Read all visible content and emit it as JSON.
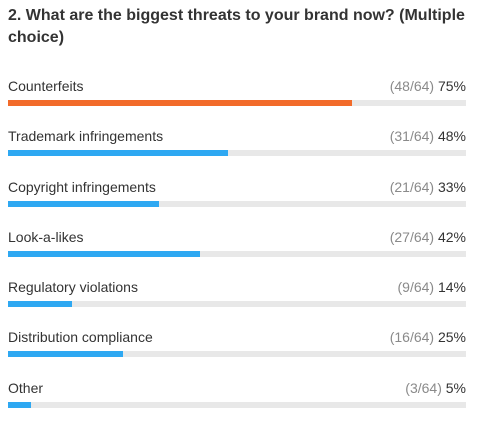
{
  "question": "2. What are the biggest threats to your brand now? (Multiple choice)",
  "colors": {
    "top": "#F26B2A",
    "default": "#2EA8F2",
    "track": "#E8E8E8"
  },
  "chart_data": {
    "type": "bar",
    "orientation": "horizontal",
    "total": 64,
    "categories": [
      "Counterfeits",
      "Trademark infringements",
      "Copyright infringements",
      "Look-a-likes",
      "Regulatory violations",
      "Distribution compliance",
      "Other"
    ],
    "counts": [
      48,
      31,
      21,
      27,
      9,
      16,
      3
    ],
    "count_labels": [
      "(48/64)",
      "(31/64)",
      "(21/64)",
      "(27/64)",
      "(9/64)",
      "(16/64)",
      "(3/64)"
    ],
    "percent_labels": [
      "75%",
      "48%",
      "33%",
      "42%",
      "14%",
      "25%",
      "5%"
    ],
    "values": [
      75,
      48,
      33,
      42,
      14,
      25,
      5
    ],
    "xlim": [
      0,
      100
    ],
    "highlight_index": 0
  }
}
